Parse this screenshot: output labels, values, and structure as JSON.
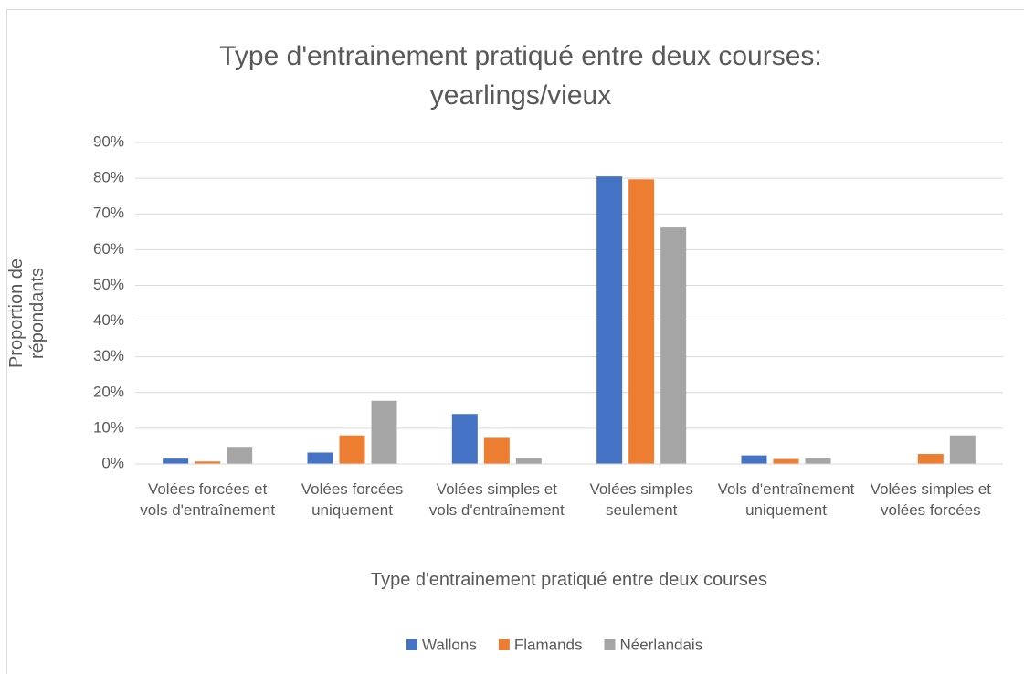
{
  "chart_data": {
    "type": "bar",
    "title": "Type d'entrainement pratiqué entre deux courses: yearlings/vieux",
    "x_label": "Type d'entrainement pratiqué entre deux courses",
    "y_label": "Proportion de répondants",
    "categories": [
      "Volées forcées et vols d'entraînement",
      "Volées forcées uniquement",
      "Volées simples et vols d'entraînement",
      "Volées simples seulement",
      "Vols d'entraînement uniquement",
      "Volées simples et volées forcées"
    ],
    "series": [
      {
        "name": "Wallons",
        "color": "#4472c4",
        "values": [
          1.5,
          3.2,
          14.0,
          80.5,
          2.4,
          0
        ]
      },
      {
        "name": "Flamands",
        "color": "#ed7d31",
        "values": [
          0.7,
          8.0,
          7.3,
          79.7,
          1.4,
          2.8
        ]
      },
      {
        "name": "Néerlandais",
        "color": "#a5a5a5",
        "values": [
          4.8,
          17.7,
          1.6,
          66.2,
          1.6,
          8.0
        ]
      }
    ],
    "ylim": [
      0,
      90
    ],
    "yticks": [
      {
        "value": 0,
        "label": "0%"
      },
      {
        "value": 10,
        "label": "10%"
      },
      {
        "value": 20,
        "label": "20%"
      },
      {
        "value": 30,
        "label": "30%"
      },
      {
        "value": 40,
        "label": "40%"
      },
      {
        "value": 50,
        "label": "50%"
      },
      {
        "value": 60,
        "label": "60%"
      },
      {
        "value": 70,
        "label": "70%"
      },
      {
        "value": 80,
        "label": "80%"
      },
      {
        "value": 90,
        "label": "90%"
      }
    ],
    "grid": true,
    "legend": "bottom"
  }
}
